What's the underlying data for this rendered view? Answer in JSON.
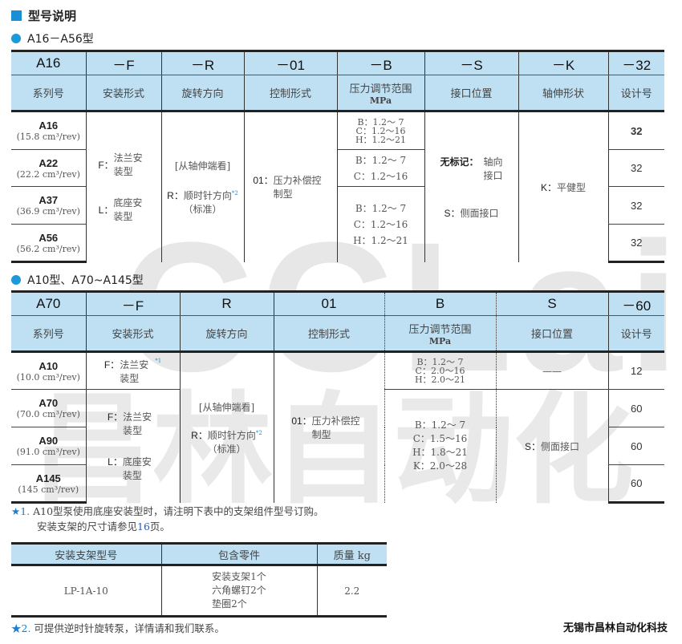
{
  "watermark": {
    "logo": "CCLair",
    "company": "昌林自动化"
  },
  "title": "型号说明",
  "section1": {
    "subtitle": "A16－A56型",
    "codes": [
      "A16",
      "－F",
      "－R",
      "－01",
      "－B",
      "－S",
      "－K",
      "－32"
    ],
    "headers": [
      "系列号",
      "安装形式",
      "旋转方向",
      "控制形式",
      "压力调节范围",
      "接口位置",
      "轴伸形状",
      "设计号"
    ],
    "pressure_unit": "MPa",
    "models": [
      {
        "name": "A16",
        "disp": "(15.8 cm³/rev)"
      },
      {
        "name": "A22",
        "disp": "(22.2 cm³/rev)"
      },
      {
        "name": "A37",
        "disp": "(36.9 cm³/rev)"
      },
      {
        "name": "A56",
        "disp": "(56.2 cm³/rev)"
      }
    ],
    "mounting": {
      "f_key": "F：",
      "f_text": "法兰安装型",
      "l_key": "L：",
      "l_text": "底座安装型"
    },
    "rotation": {
      "view": "[从轴伸端看]",
      "key": "R：",
      "text": "顺时针方向",
      "note": "*2",
      "std": "（标准）"
    },
    "control": {
      "key": "01：",
      "text": "压力补偿控制型"
    },
    "pressure": [
      [
        "B：1.2～ 7",
        "C：1.2～16",
        "H：1.2～21"
      ],
      [
        "B：1.2～ 7",
        "C：1.2～16"
      ],
      [
        "B：1.2～ 7",
        "C：1.2～16",
        "H：1.2～21"
      ]
    ],
    "port": {
      "none_key": "无标记：",
      "none_text": "轴向接口",
      "s_key": "S：",
      "s_text": "侧面接口"
    },
    "shaft": {
      "key": "K：",
      "text": "平健型"
    },
    "design": [
      "32",
      "32",
      "32",
      "32"
    ]
  },
  "section2": {
    "subtitle": "A10型、A70~A145型",
    "codes": [
      "A70",
      "－F",
      "R",
      "01",
      "B",
      "S",
      "－60"
    ],
    "headers": [
      "系列号",
      "安装形式",
      "旋转方向",
      "控制形式",
      "压力调节范围",
      "接口位置",
      "设计号"
    ],
    "pressure_unit": "MPa",
    "models": [
      {
        "name": "A10",
        "disp": "(10.0 cm³/rev)"
      },
      {
        "name": "A70",
        "disp": "(70.0 cm³/rev)"
      },
      {
        "name": "A90",
        "disp": "(91.0 cm³/rev)"
      },
      {
        "name": "A145",
        "disp": "(145 cm³/rev)"
      }
    ],
    "mounting_a10": {
      "key": "F：",
      "text": "法兰安装型",
      "note": "*1"
    },
    "mounting": {
      "f_key": "F：",
      "f_text": "法兰安装型",
      "l_key": "L：",
      "l_text": "底座安装型"
    },
    "rotation": {
      "view": "[从轴伸端看]",
      "key": "R：",
      "text": "顺时针方向",
      "note": "*2",
      "std": "（标准）"
    },
    "control": {
      "key": "01：",
      "text": "压力补偿控制型"
    },
    "pressure": [
      [
        "B：1.2～ 7",
        "C：2.0～16",
        "H：2.0～21"
      ],
      [
        "B：1.2～ 7",
        "C：1.5～16",
        "H：1.8～21",
        "K：2.0～28"
      ]
    ],
    "port": {
      "a10": "——",
      "s_key": "S：",
      "s_text": "侧面接口"
    },
    "design": [
      "12",
      "60",
      "60",
      "60"
    ]
  },
  "note1": {
    "star": "★1.",
    "line1": "A10型泵使用底座安装型时，请注明下表中的支架组件型号订购。",
    "line2_pre": "安装支架的尺寸请参见",
    "page": "16",
    "line2_post": "页。"
  },
  "bracket_table": {
    "headers": [
      "安装支架型号",
      "包含零件",
      "质量  kg"
    ],
    "row": {
      "model": "LP-1A-10",
      "parts": [
        "安装支架1个",
        "六角螺钉2个",
        "垫圈2个"
      ],
      "mass": "2.2"
    }
  },
  "note2": {
    "star": "★2.",
    "text": "可提供逆时针旋转泵，详情请和我们联系。"
  },
  "company": "无锡市昌林自动化科技"
}
